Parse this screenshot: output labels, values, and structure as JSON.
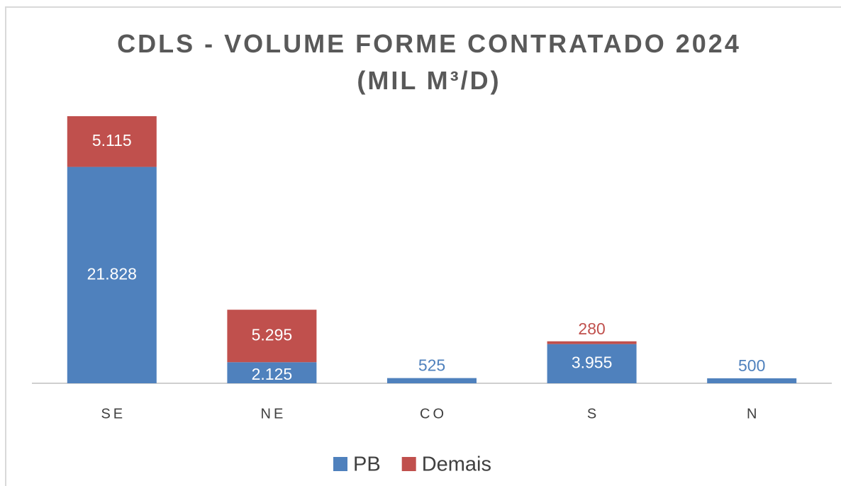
{
  "chart_data": {
    "type": "stacked_bar",
    "title": "CDLS - VOLUME FORME CONTRATADO 2024\n(MIL M³/D)",
    "categories": [
      "SE",
      "NE",
      "CO",
      "S",
      "N"
    ],
    "series": [
      {
        "name": "PB",
        "color": "#4f81bd",
        "values": [
          21828,
          2125,
          525,
          3955,
          500
        ],
        "value_labels": [
          "21.828",
          "2.125",
          "525",
          "3.955",
          "500"
        ]
      },
      {
        "name": "Demais",
        "color": "#c0504d",
        "values": [
          5115,
          5295,
          null,
          280,
          null
        ],
        "value_labels": [
          "5.115",
          "5.295",
          null,
          "280",
          null
        ]
      }
    ],
    "legend": "bottom"
  }
}
